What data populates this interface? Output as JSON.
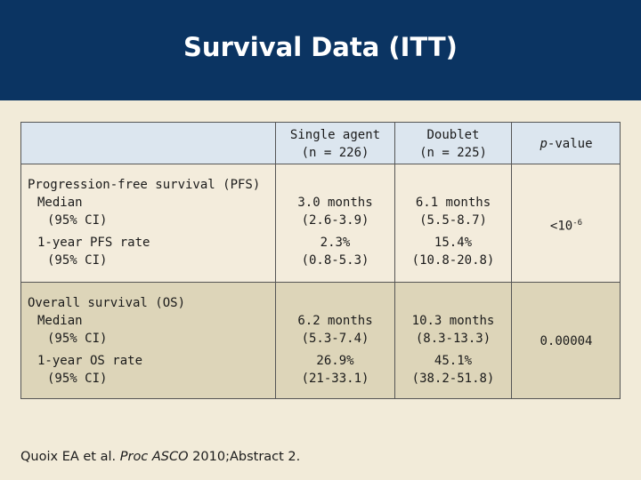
{
  "header": {
    "title": "Survival Data (ITT)"
  },
  "table": {
    "columns": [
      [
        "Single agent",
        "(n = 226)"
      ],
      [
        "Doublet",
        "(n = 225)"
      ],
      {
        "italic": "p",
        "text": "-value"
      }
    ],
    "sections": [
      {
        "label": "Progression-free survival (PFS)",
        "rows": [
          {
            "label": [
              "Median",
              "(95% CI)"
            ],
            "values": [
              [
                "3.0 months",
                "(2.6-3.9)"
              ],
              [
                "6.1 months",
                "(5.5-8.7)"
              ]
            ]
          },
          {
            "label": [
              "1-year PFS rate",
              "(95% CI)"
            ],
            "values": [
              [
                "2.3%",
                "(0.8-5.3)"
              ],
              [
                "15.4%",
                "(10.8-20.8)"
              ]
            ]
          }
        ],
        "p_value": {
          "base": "<10",
          "sup": "-6"
        }
      },
      {
        "label": "Overall survival (OS)",
        "rows": [
          {
            "label": [
              "Median",
              "(95% CI)"
            ],
            "values": [
              [
                "6.2 months",
                "(5.3-7.4)"
              ],
              [
                "10.3 months",
                "(8.3-13.3)"
              ]
            ]
          },
          {
            "label": [
              "1-year OS rate",
              "(95% CI)"
            ],
            "values": [
              [
                "26.9%",
                "(21-33.1)"
              ],
              [
                "45.1%",
                "(38.2-51.8)"
              ]
            ]
          }
        ],
        "p_value": {
          "base": "0.00004"
        }
      }
    ]
  },
  "footnote": {
    "before": "Quoix EA et al. ",
    "italic": "Proc ASCO",
    "after": " 2010;Abstract 2."
  }
}
